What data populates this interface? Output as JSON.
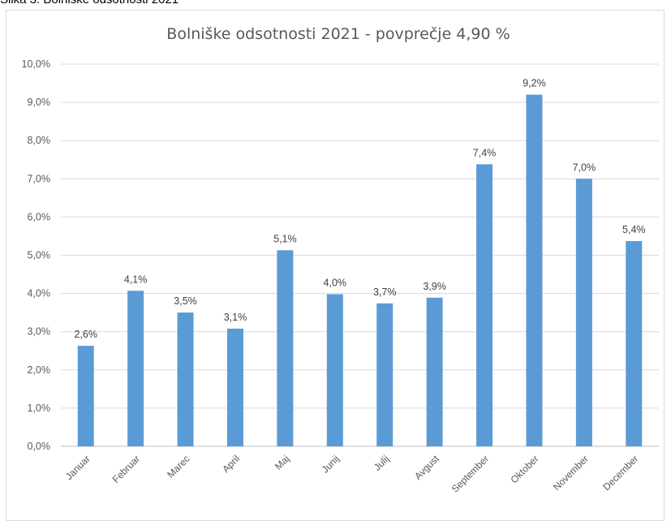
{
  "page": {
    "caption": "Slika 3: Bolniške odsotnosti 2021"
  },
  "chart_data": {
    "type": "bar",
    "title": "Bolniške odsotnosti 2021 - povprečje 4,90 %",
    "xlabel": "",
    "ylabel": "",
    "ylim": [
      0,
      10
    ],
    "yticks": [
      "0,0%",
      "1,0%",
      "2,0%",
      "3,0%",
      "4,0%",
      "5,0%",
      "6,0%",
      "7,0%",
      "8,0%",
      "9,0%",
      "10,0%"
    ],
    "grid": true,
    "bar_color": "#5b9bd5",
    "categories": [
      "Januar",
      "Februar",
      "Marec",
      "April",
      "Maj",
      "Junij",
      "Julij",
      "Avgust",
      "September",
      "Oktober",
      "November",
      "December"
    ],
    "values": [
      2.63,
      4.07,
      3.5,
      3.08,
      5.13,
      3.98,
      3.74,
      3.89,
      7.38,
      9.2,
      7.0,
      5.37
    ],
    "value_labels": [
      "2,6%",
      "4,1%",
      "3,5%",
      "3,1%",
      "5,1%",
      "4,0%",
      "3,7%",
      "3,9%",
      "7,4%",
      "9,2%",
      "7,0%",
      "5,4%"
    ]
  }
}
